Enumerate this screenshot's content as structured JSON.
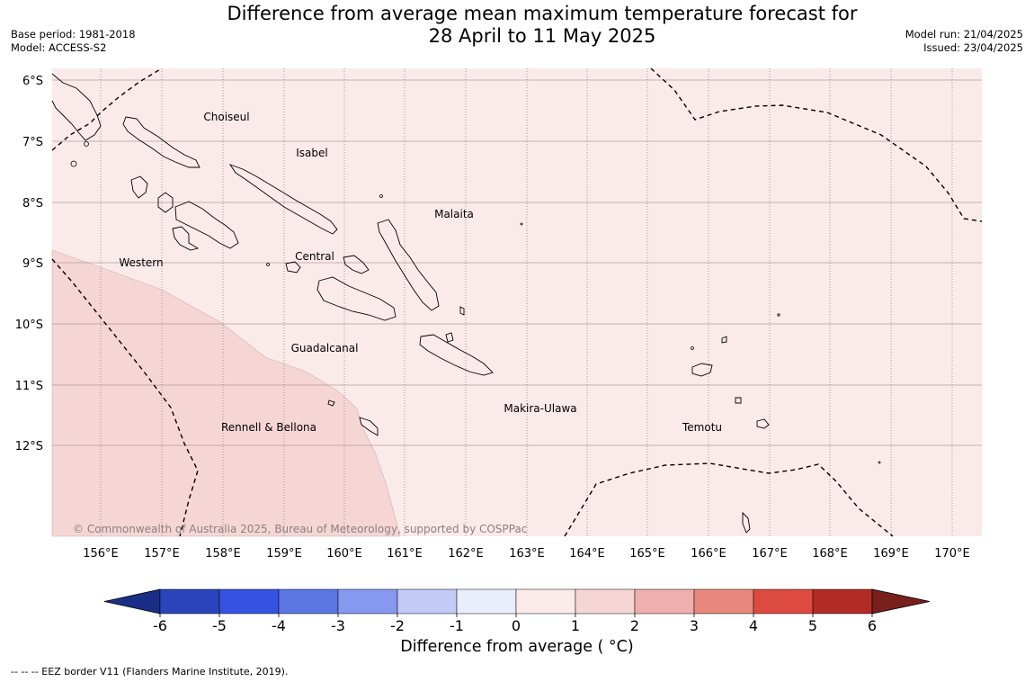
{
  "header": {
    "title_line1": "Difference from average mean maximum temperature forecast for",
    "title_line2": "28 April to 11 May 2025",
    "base_period": "Base period: 1981-2018",
    "model": "Model: ACCESS-S2",
    "model_run": "Model run: 21/04/2025",
    "issued": "Issued: 23/04/2025"
  },
  "map": {
    "lat_labels": [
      "6°S",
      "7°S",
      "8°S",
      "9°S",
      "10°S",
      "11°S",
      "12°S"
    ],
    "lon_labels": [
      "156°E",
      "157°E",
      "158°E",
      "159°E",
      "160°E",
      "161°E",
      "162°E",
      "163°E",
      "164°E",
      "165°E",
      "166°E",
      "167°E",
      "168°E",
      "169°E",
      "170°E"
    ],
    "provinces": [
      "Choiseul",
      "Isabel",
      "Malaita",
      "Western",
      "Central",
      "Guadalcanal",
      "Makira-Ulawa",
      "Rennell & Bellona",
      "Temotu"
    ],
    "copyright": "© Commonwealth of Australia 2025, Bureau of Meteorology, supported by COSPPac",
    "colors": {
      "background_0_1": "#fbeaea",
      "band_1_2": "#f6d6d5",
      "coast": "#000000",
      "grid": "#8a7a7a"
    }
  },
  "colorbar": {
    "ticks": [
      "-6",
      "-5",
      "-4",
      "-3",
      "-2",
      "-1",
      "0",
      "1",
      "2",
      "3",
      "4",
      "5",
      "6"
    ],
    "colors": [
      "#1a2e86",
      "#2a45bb",
      "#3552e0",
      "#5c76e4",
      "#8699ee",
      "#c2cbf6",
      "#eaedfc",
      "#fbeaea",
      "#f6d6d5",
      "#efafac",
      "#e8877f",
      "#dd4a40",
      "#b22b25",
      "#7a201c"
    ],
    "label": "Difference from average ( °C)"
  },
  "footnote": "--  --  -- EEZ border V11 (Flanders Marine Institute, 2019)."
}
